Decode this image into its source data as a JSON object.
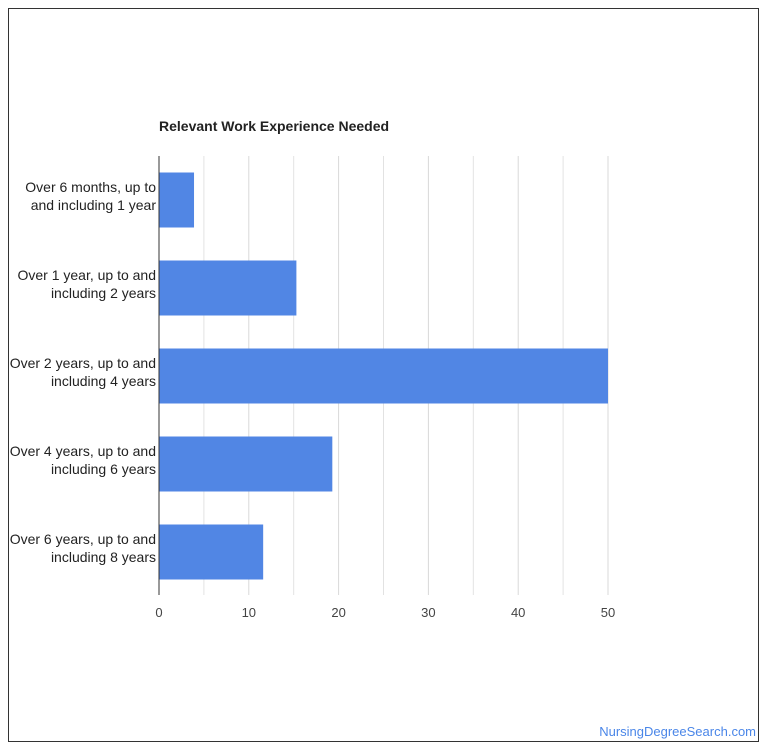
{
  "chart_data": {
    "type": "bar",
    "orientation": "horizontal",
    "title": "Relevant Work Experience Needed",
    "categories": [
      [
        "Over 6 months, up to",
        "and including 1 year"
      ],
      [
        "Over 1 year, up to and",
        "including 2 years"
      ],
      [
        "Over 2 years, up to and",
        "including 4 years"
      ],
      [
        "Over 4 years, up to and",
        "including 6 years"
      ],
      [
        "Over 6 years, up to and",
        "including 8 years"
      ]
    ],
    "values": [
      3.9,
      15.3,
      50.0,
      19.3,
      11.6
    ],
    "xlim": [
      0,
      50
    ],
    "xticks": [
      0,
      10,
      20,
      30,
      40,
      50
    ],
    "grid": true,
    "bar_color": "#5186e4",
    "grid_color": "#d9d9d9",
    "axis_color": "#333333"
  },
  "watermark": "NursingDegreeSearch.com"
}
